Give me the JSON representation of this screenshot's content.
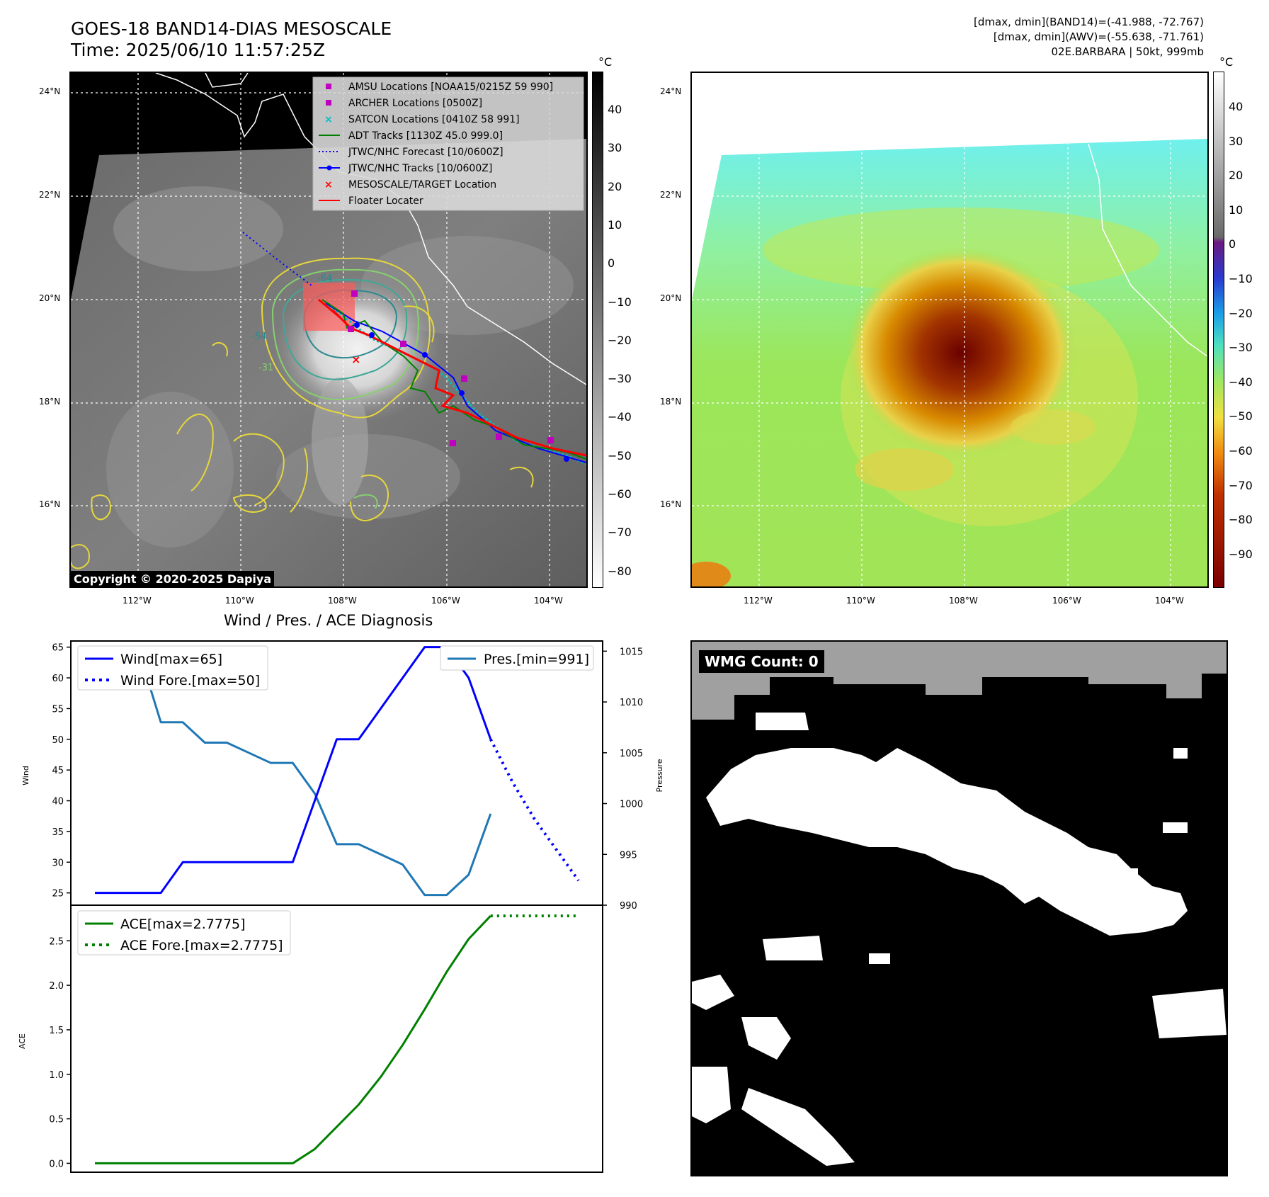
{
  "header": {
    "title": "GOES-18 BAND14-DIAS MESOSCALE",
    "time": "Time: 2025/06/10 11:57:25Z",
    "info_line1": "[dmax, dmin](BAND14)=(-41.988, -72.767)",
    "info_line2": "[dmax, dmin](AWV)=(-55.638, -71.761)",
    "info_line3": "02E.BARBARA | 50kt, 999mb"
  },
  "ir_map": {
    "lat_labels": [
      "24°N",
      "22°N",
      "20°N",
      "18°N",
      "16°N"
    ],
    "lon_labels": [
      "112°W",
      "110°W",
      "108°W",
      "106°W",
      "104°W"
    ],
    "colorbar_unit": "°C",
    "colorbar_ticks": [
      "40",
      "30",
      "20",
      "10",
      "0",
      "−10",
      "−20",
      "−30",
      "−40",
      "−50",
      "−60",
      "−70",
      "−80"
    ],
    "contour_labels": [
      "-64",
      "-54",
      "-31"
    ],
    "copyright": "Copyright © 2020-2025 Dapiya",
    "legend": [
      {
        "label": "AMSU Locations [NOAA15/0215Z 59 990]",
        "color": "#bf00bf",
        "marker": "square"
      },
      {
        "label": "ARCHER Locations [0500Z]",
        "color": "#bf00bf",
        "marker": "square"
      },
      {
        "label": "SATCON Locations [0410Z 58 991]",
        "color": "#00bfbf",
        "marker": "x"
      },
      {
        "label": "ADT Tracks [1130Z 45.0 999.0]",
        "color": "#008000",
        "marker": "line"
      },
      {
        "label": "JTWC/NHC Forecast [10/0600Z]",
        "color": "#0000ff",
        "marker": "dotted"
      },
      {
        "label": "JTWC/NHC Tracks [10/0600Z]",
        "color": "#0000ff",
        "marker": "line-dot"
      },
      {
        "label": "MESOSCALE/TARGET Location",
        "color": "#ff0000",
        "marker": "x"
      },
      {
        "label": "Floater Locater",
        "color": "#ff0000",
        "marker": "line"
      }
    ]
  },
  "wv_map": {
    "lat_labels": [
      "24°N",
      "22°N",
      "20°N",
      "18°N",
      "16°N"
    ],
    "lon_labels": [
      "112°W",
      "110°W",
      "108°W",
      "106°W",
      "104°W"
    ],
    "colorbar_unit": "°C",
    "colorbar_ticks": [
      "40",
      "30",
      "20",
      "10",
      "0",
      "−10",
      "−20",
      "−30",
      "−40",
      "−50",
      "−60",
      "−70",
      "−80",
      "−90"
    ]
  },
  "wmg": {
    "label": "WMG Count: 0"
  },
  "chart_data": {
    "type": "line",
    "title": "Wind / Pres. / ACE Diagnosis",
    "wind_panel": {
      "ylabel": "Wind",
      "ylabel_right": "Pressure",
      "ylim": [
        23,
        66
      ],
      "yticks": [
        25,
        30,
        35,
        40,
        45,
        50,
        55,
        60,
        65
      ],
      "pres_ylim": [
        990,
        1016
      ],
      "pres_yticks": [
        990,
        995,
        1000,
        1005,
        1010,
        1015
      ],
      "series": [
        {
          "name": "Wind[max=65]",
          "color": "#0000ff",
          "style": "solid",
          "x": [
            0,
            1,
            2,
            3,
            4,
            5,
            6,
            7,
            8,
            9,
            10,
            11,
            12,
            13,
            14,
            15,
            16,
            17,
            18
          ],
          "values": [
            25,
            25,
            25,
            25,
            30,
            30,
            30,
            30,
            30,
            30,
            40,
            50,
            50,
            55,
            60,
            65,
            65,
            60,
            50
          ]
        },
        {
          "name": "Wind Fore.[max=50]",
          "color": "#0000ff",
          "style": "dotted",
          "x": [
            18,
            19,
            20,
            21,
            22
          ],
          "values": [
            50,
            43,
            37,
            32,
            27
          ]
        },
        {
          "name": "Pres.[min=991]",
          "color": "#1f77b4",
          "style": "solid",
          "axis": "right",
          "x": [
            0,
            1,
            2,
            3,
            4,
            5,
            6,
            7,
            8,
            9,
            10,
            11,
            12,
            13,
            14,
            15,
            16,
            17,
            18
          ],
          "values": [
            1015,
            1015,
            1015,
            1008,
            1008,
            1006,
            1006,
            1005,
            1004,
            1004,
            1001,
            996,
            996,
            995,
            994,
            991,
            991,
            993,
            999
          ]
        }
      ]
    },
    "ace_panel": {
      "ylabel": "ACE",
      "ylim": [
        -0.1,
        2.9
      ],
      "yticks": [
        0.0,
        0.5,
        1.0,
        1.5,
        2.0,
        2.5
      ],
      "series": [
        {
          "name": "ACE[max=2.7775]",
          "color": "#008000",
          "style": "solid",
          "x": [
            0,
            1,
            2,
            3,
            4,
            5,
            6,
            7,
            8,
            9,
            10,
            11,
            12,
            13,
            14,
            15,
            16,
            17,
            18
          ],
          "values": [
            0,
            0,
            0,
            0,
            0,
            0,
            0,
            0,
            0,
            0,
            0.16,
            0.41,
            0.66,
            0.97,
            1.33,
            1.73,
            2.15,
            2.52,
            2.78
          ]
        },
        {
          "name": "ACE Fore.[max=2.7775]",
          "color": "#008000",
          "style": "dotted",
          "x": [
            18,
            19,
            20,
            21,
            22
          ],
          "values": [
            2.78,
            2.78,
            2.78,
            2.78,
            2.78
          ]
        }
      ]
    }
  }
}
